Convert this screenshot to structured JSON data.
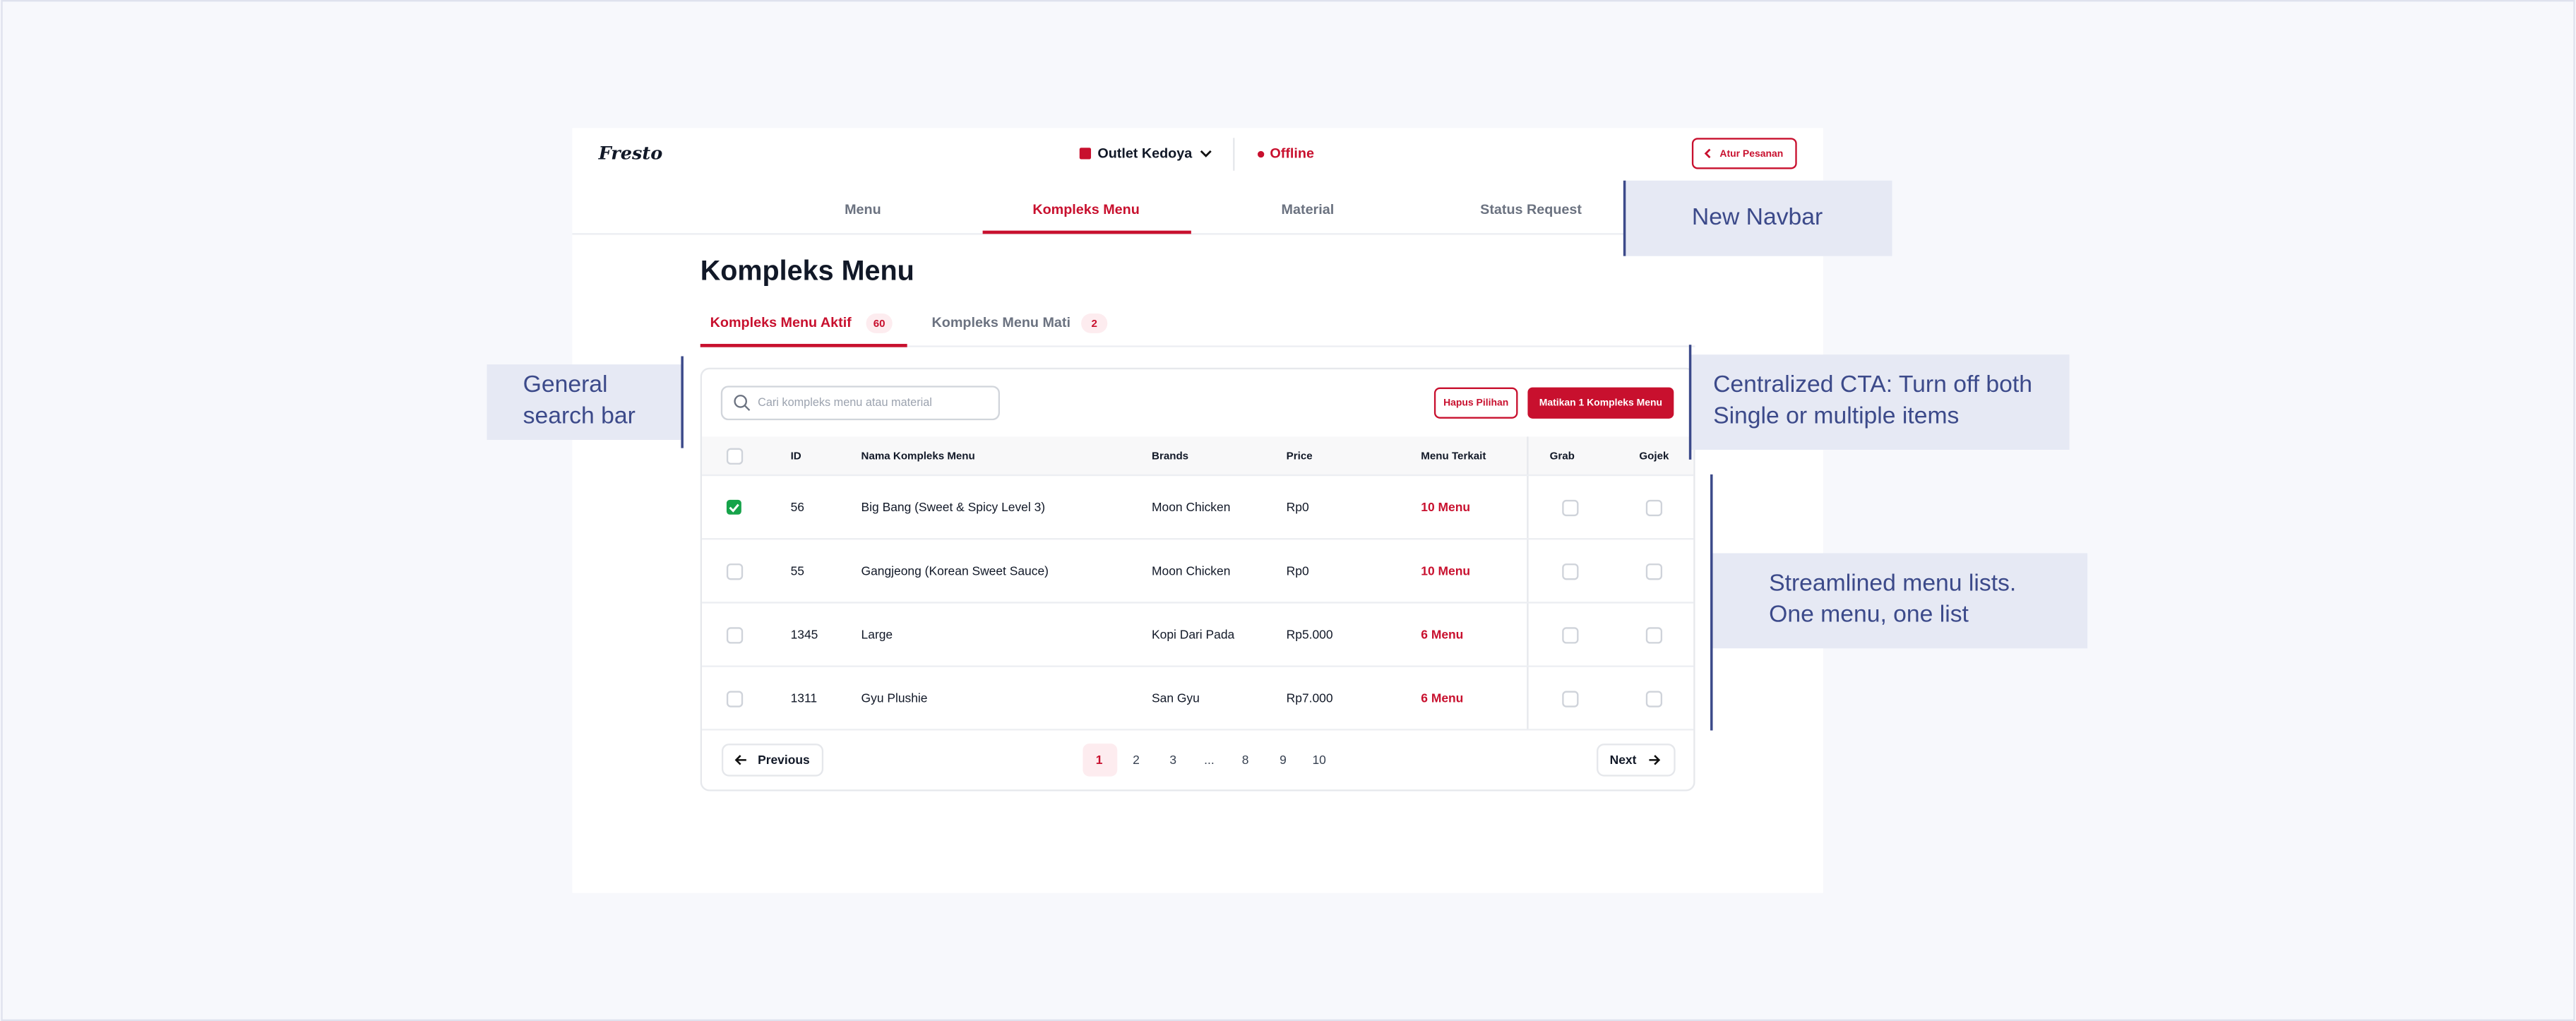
{
  "header": {
    "logo": "Fresto",
    "outlet": "Outlet Kedoya",
    "status": "Offline",
    "action": "Atur Pesanan"
  },
  "nav": [
    "Menu",
    "Kompleks Menu",
    "Material",
    "Status Request"
  ],
  "page_title": "Kompleks Menu",
  "tabs": [
    {
      "label": "Kompleks Menu Aktif",
      "count": "60"
    },
    {
      "label": "Kompleks Menu Mati",
      "count": "2"
    }
  ],
  "search_placeholder": "Cari kompleks menu atau material",
  "buttons": {
    "clear": "Hapus Pilihan",
    "disable": "Matikan 1 Kompleks Menu"
  },
  "table": {
    "columns": [
      "ID",
      "Nama Kompleks Menu",
      "Brands",
      "Price",
      "Menu Terkait",
      "Grab",
      "Gojek"
    ],
    "rows": [
      {
        "id": "56",
        "name": "Big Bang (Sweet & Spicy Level 3)",
        "brand": "Moon Chicken",
        "price": "Rp0",
        "linked": "10 Menu",
        "selected": true
      },
      {
        "id": "55",
        "name": "Gangjeong (Korean Sweet Sauce)",
        "brand": "Moon Chicken",
        "price": "Rp0",
        "linked": "10 Menu",
        "selected": false
      },
      {
        "id": "1345",
        "name": "Large",
        "brand": "Kopi Dari Pada",
        "price": "Rp5.000",
        "linked": "6 Menu",
        "selected": false
      },
      {
        "id": "1311",
        "name": "Gyu Plushie",
        "brand": "San Gyu",
        "price": "Rp7.000",
        "linked": "6 Menu",
        "selected": false
      }
    ]
  },
  "pagination": {
    "previous": "Previous",
    "pages": [
      "1",
      "2",
      "3",
      "...",
      "8",
      "9",
      "10"
    ],
    "next": "Next"
  },
  "annotations": [
    {
      "lines": [
        "New Navbar"
      ]
    },
    {
      "lines": [
        "General",
        "search bar"
      ]
    },
    {
      "lines": [
        "Centralized CTA: Turn off both",
        "Single or multiple items"
      ]
    },
    {
      "lines": [
        "Streamlined menu lists.",
        "One menu, one list"
      ]
    }
  ]
}
